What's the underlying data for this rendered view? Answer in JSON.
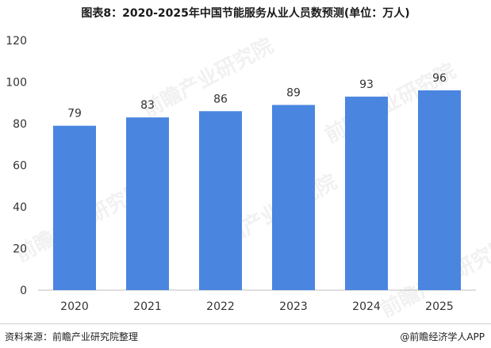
{
  "title": "图表8：2020-2025年中国节能服务从业人员数预测(单位：万人)",
  "footer": {
    "source": "资料来源：前瞻产业研究院整理",
    "brand": "@前瞻经济学人APP"
  },
  "watermark": "前瞻产业研究院",
  "colors": {
    "bar": "#4a86e0",
    "grid": "#d9d9d9",
    "axis": "#bfbfbf"
  },
  "chart_data": {
    "type": "bar",
    "categories": [
      "2020",
      "2021",
      "2022",
      "2023",
      "2024",
      "2025"
    ],
    "values": [
      79,
      83,
      86,
      89,
      93,
      96
    ],
    "data_labels": [
      "79",
      "83",
      "86",
      "89",
      "93",
      "96"
    ],
    "ylim": [
      0,
      120
    ],
    "yticks": [
      0,
      20,
      40,
      60,
      80,
      100,
      120
    ],
    "grid": false,
    "legend": "none"
  }
}
